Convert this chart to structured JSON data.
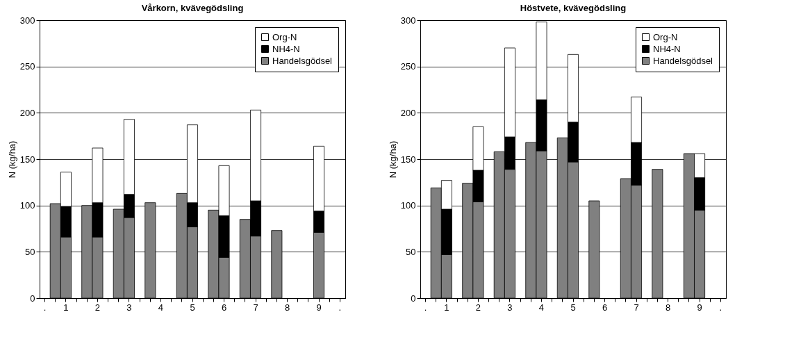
{
  "chart_data": [
    {
      "type": "bar",
      "title": "Vårkorn, kvävegödsling",
      "ylabel": "N (kg/ha)",
      "categories": [
        ".",
        null,
        "1",
        null,
        null,
        "2",
        null,
        null,
        "3",
        null,
        null,
        "4",
        null,
        null,
        "5",
        null,
        null,
        "6",
        null,
        null,
        "7",
        null,
        null,
        "8",
        null,
        null,
        "9",
        null,
        "."
      ],
      "stacked": true,
      "ylim": [
        0,
        300
      ],
      "yticks": [
        0,
        50,
        100,
        150,
        200,
        250,
        300
      ],
      "grid": "y",
      "legend": "top right",
      "series": [
        {
          "name": "Handelsgödsel",
          "color": "#808080",
          "values": [
            null,
            102,
            66,
            null,
            100,
            66,
            null,
            96,
            87,
            null,
            103,
            null,
            null,
            113,
            77,
            null,
            95,
            44,
            null,
            85,
            67,
            null,
            73,
            null,
            null,
            null,
            71,
            null,
            null
          ]
        },
        {
          "name": "NH4-N",
          "color": "#000000",
          "values": [
            null,
            null,
            33,
            null,
            null,
            37,
            null,
            null,
            25,
            null,
            null,
            null,
            null,
            null,
            26,
            null,
            null,
            45,
            null,
            null,
            38,
            null,
            null,
            null,
            null,
            null,
            23,
            null,
            null
          ]
        },
        {
          "name": "Org-N",
          "color": "#ffffff",
          "values": [
            null,
            null,
            37,
            null,
            null,
            59,
            null,
            null,
            81,
            null,
            null,
            null,
            null,
            null,
            84,
            null,
            null,
            54,
            null,
            null,
            98,
            null,
            null,
            null,
            null,
            null,
            70,
            null,
            null
          ]
        }
      ]
    },
    {
      "type": "bar",
      "title": "Höstvete, kvävegödsling",
      "ylabel": "N (kg/ha)",
      "categories": [
        ".",
        null,
        "1",
        null,
        null,
        "2",
        null,
        null,
        "3",
        null,
        null,
        "4",
        null,
        null,
        "5",
        null,
        null,
        "6",
        null,
        null,
        "7",
        null,
        null,
        "8",
        null,
        null,
        "9",
        null,
        "."
      ],
      "stacked": true,
      "ylim": [
        0,
        300
      ],
      "yticks": [
        0,
        50,
        100,
        150,
        200,
        250,
        300
      ],
      "grid": "y",
      "legend": "top right",
      "series": [
        {
          "name": "Handelsgödsel",
          "color": "#808080",
          "values": [
            null,
            119,
            47,
            null,
            124,
            104,
            null,
            158,
            139,
            null,
            168,
            159,
            null,
            173,
            147,
            null,
            105,
            null,
            null,
            129,
            122,
            null,
            139,
            null,
            null,
            156,
            95,
            null,
            null
          ]
        },
        {
          "name": "NH4-N",
          "color": "#000000",
          "values": [
            null,
            null,
            49,
            null,
            null,
            34,
            null,
            null,
            35,
            null,
            null,
            55,
            null,
            null,
            43,
            null,
            null,
            null,
            null,
            null,
            46,
            null,
            null,
            null,
            null,
            null,
            35,
            null,
            null
          ]
        },
        {
          "name": "Org-N",
          "color": "#ffffff",
          "values": [
            null,
            null,
            31,
            null,
            null,
            47,
            null,
            null,
            96,
            null,
            null,
            84,
            null,
            null,
            73,
            null,
            null,
            null,
            null,
            null,
            49,
            null,
            null,
            null,
            null,
            null,
            26,
            null,
            null
          ]
        }
      ]
    }
  ]
}
